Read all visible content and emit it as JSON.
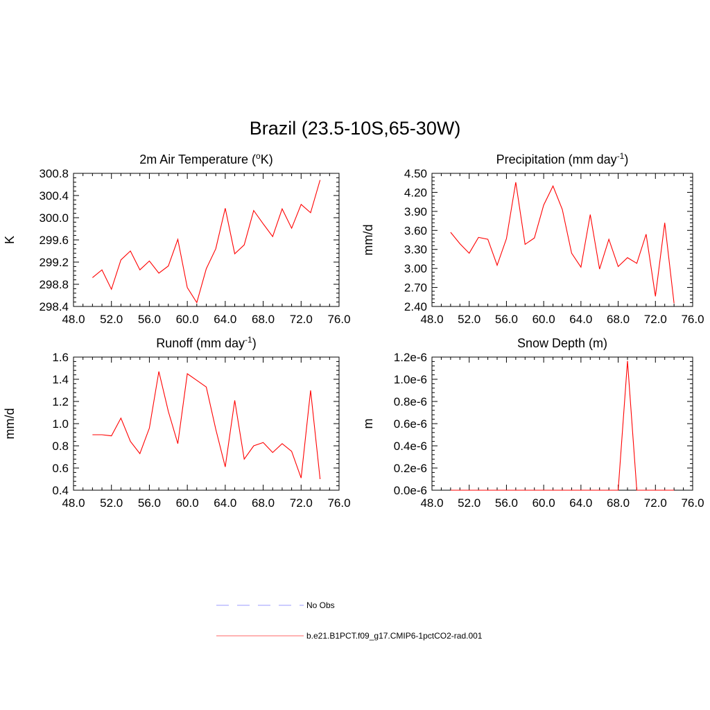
{
  "title": "Brazil (23.5-10S,65-30W)",
  "chart_data": [
    {
      "id": "temp",
      "type": "line",
      "title_parts": [
        "2m Air Temperature (",
        "o",
        "K)"
      ],
      "title_sup_index": 1,
      "ylabel": "K",
      "xlim": [
        48,
        76
      ],
      "ylim": [
        298.4,
        300.8
      ],
      "xticks": [
        "48.0",
        "52.0",
        "56.0",
        "60.0",
        "64.0",
        "68.0",
        "72.0",
        "76.0"
      ],
      "xtick_values": [
        48,
        52,
        56,
        60,
        64,
        68,
        72,
        76
      ],
      "yticks": [
        "298.4",
        "298.8",
        "299.2",
        "299.6",
        "300.0",
        "300.4",
        "300.8"
      ],
      "ytick_values": [
        298.4,
        298.8,
        299.2,
        299.6,
        300.0,
        300.4,
        300.8
      ],
      "series": [
        {
          "color": "#ff0000",
          "x": [
            50,
            51,
            52,
            53,
            54,
            55,
            56,
            57,
            58,
            59,
            60,
            61,
            62,
            63,
            64,
            65,
            66,
            67,
            68,
            69,
            70,
            71,
            72,
            73,
            74
          ],
          "y": [
            298.92,
            299.06,
            298.71,
            299.24,
            299.4,
            299.06,
            299.22,
            299.0,
            299.13,
            299.61,
            298.74,
            298.47,
            299.08,
            299.44,
            300.17,
            299.35,
            299.51,
            300.13,
            299.89,
            299.66,
            300.16,
            299.81,
            300.24,
            300.09,
            300.68
          ]
        }
      ]
    },
    {
      "id": "precip",
      "type": "line",
      "title_parts": [
        "Precipitation (mm day",
        "-1",
        ")"
      ],
      "title_sup_index": 1,
      "ylabel": "mm/d",
      "xlim": [
        48,
        76
      ],
      "ylim": [
        2.4,
        4.5
      ],
      "xticks": [
        "48.0",
        "52.0",
        "56.0",
        "60.0",
        "64.0",
        "68.0",
        "72.0",
        "76.0"
      ],
      "xtick_values": [
        48,
        52,
        56,
        60,
        64,
        68,
        72,
        76
      ],
      "yticks": [
        "2.40",
        "2.70",
        "3.00",
        "3.30",
        "3.60",
        "3.90",
        "4.20",
        "4.50"
      ],
      "ytick_values": [
        2.4,
        2.7,
        3.0,
        3.3,
        3.6,
        3.9,
        4.2,
        4.5
      ],
      "series": [
        {
          "color": "#ff0000",
          "x": [
            50,
            51,
            52,
            53,
            54,
            55,
            56,
            57,
            58,
            59,
            60,
            61,
            62,
            63,
            64,
            65,
            66,
            67,
            68,
            69,
            70,
            71,
            72,
            73,
            74
          ],
          "y": [
            3.57,
            3.39,
            3.24,
            3.49,
            3.46,
            3.05,
            3.47,
            4.36,
            3.38,
            3.48,
            4.0,
            4.3,
            3.93,
            3.24,
            3.02,
            3.85,
            2.99,
            3.46,
            3.03,
            3.17,
            3.08,
            3.54,
            2.56,
            3.72,
            2.45
          ]
        }
      ]
    },
    {
      "id": "runoff",
      "type": "line",
      "title_parts": [
        "Runoff (mm day",
        "-1",
        ")"
      ],
      "title_sup_index": 1,
      "ylabel": "mm/d",
      "xlim": [
        48,
        76
      ],
      "ylim": [
        0.4,
        1.6
      ],
      "xticks": [
        "48.0",
        "52.0",
        "56.0",
        "60.0",
        "64.0",
        "68.0",
        "72.0",
        "76.0"
      ],
      "xtick_values": [
        48,
        52,
        56,
        60,
        64,
        68,
        72,
        76
      ],
      "yticks": [
        "0.4",
        "0.6",
        "0.8",
        "1.0",
        "1.2",
        "1.4",
        "1.6"
      ],
      "ytick_values": [
        0.4,
        0.6,
        0.8,
        1.0,
        1.2,
        1.4,
        1.6
      ],
      "series": [
        {
          "color": "#ff0000",
          "x": [
            50,
            51,
            52,
            53,
            54,
            55,
            56,
            57,
            58,
            59,
            60,
            61,
            62,
            63,
            64,
            65,
            66,
            67,
            68,
            69,
            70,
            71,
            72,
            73,
            74
          ],
          "y": [
            0.9,
            0.9,
            0.89,
            1.05,
            0.84,
            0.73,
            0.96,
            1.47,
            1.11,
            0.82,
            1.45,
            1.39,
            1.33,
            0.95,
            0.61,
            1.21,
            0.68,
            0.8,
            0.83,
            0.74,
            0.82,
            0.75,
            0.51,
            1.3,
            0.5
          ]
        }
      ]
    },
    {
      "id": "snow",
      "type": "line",
      "title_parts": [
        "Snow Depth (m)"
      ],
      "title_sup_index": -1,
      "ylabel": "m",
      "xlim": [
        48,
        76
      ],
      "ylim": [
        0,
        1.2e-06
      ],
      "xticks": [
        "48.0",
        "52.0",
        "56.0",
        "60.0",
        "64.0",
        "68.0",
        "72.0",
        "76.0"
      ],
      "xtick_values": [
        48,
        52,
        56,
        60,
        64,
        68,
        72,
        76
      ],
      "yticks": [
        "0.0e-6",
        "0.2e-6",
        "0.4e-6",
        "0.6e-6",
        "0.8e-6",
        "1.0e-6",
        "1.2e-6"
      ],
      "ytick_values": [
        0,
        2e-07,
        4e-07,
        6e-07,
        8e-07,
        1e-06,
        1.2e-06
      ],
      "series": [
        {
          "color": "#ff0000",
          "x": [
            50,
            51,
            52,
            53,
            54,
            55,
            56,
            57,
            58,
            59,
            60,
            61,
            62,
            63,
            64,
            65,
            66,
            67,
            68,
            69,
            70,
            71,
            72,
            73,
            74
          ],
          "y": [
            0,
            0,
            0,
            0,
            0,
            0,
            0,
            0,
            0,
            0,
            0,
            0,
            0,
            0,
            0,
            0,
            0,
            0,
            0,
            1.165e-06,
            0,
            0,
            0,
            0,
            0
          ]
        }
      ]
    }
  ],
  "legend": [
    {
      "label": "No Obs",
      "color": "#9999ff",
      "style": "dashed"
    },
    {
      "label": "b.e21.B1PCT.f09_g17.CMIP6-1pctCO2-rad.001",
      "color": "#ff6666",
      "style": "solid"
    }
  ]
}
